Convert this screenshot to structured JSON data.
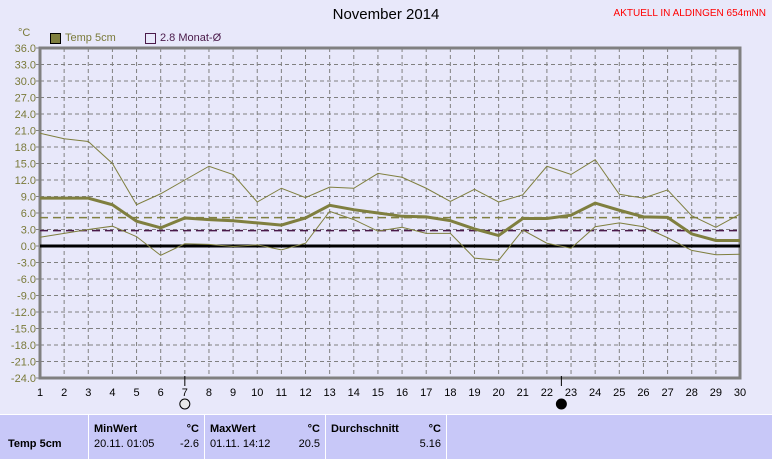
{
  "chart_data": {
    "type": "line",
    "title": "November 2014",
    "ylabel": "°C",
    "ylim": [
      -24,
      36
    ],
    "yticks": [
      "36.0",
      "33.0",
      "30.0",
      "27.0",
      "24.0",
      "21.0",
      "18.0",
      "15.0",
      "12.0",
      "9.0",
      "6.0",
      "3.0",
      "0.0",
      "-3.0",
      "-6.0",
      "-9.0",
      "-12.0",
      "-15.0",
      "-18.0",
      "-21.0",
      "-24.0"
    ],
    "x": [
      1,
      2,
      3,
      4,
      5,
      6,
      7,
      8,
      9,
      10,
      11,
      12,
      13,
      14,
      15,
      16,
      17,
      18,
      19,
      20,
      21,
      22,
      23,
      24,
      25,
      26,
      27,
      28,
      29,
      30
    ],
    "grid": true,
    "legend_position": "top-left",
    "series": [
      {
        "name": "Temp 5cm",
        "role": "mean",
        "color": "#7f7f3f",
        "values": [
          8.7,
          8.7,
          8.7,
          7.5,
          4.5,
          3.3,
          5.1,
          4.8,
          4.6,
          4.2,
          3.8,
          5.1,
          7.4,
          6.6,
          6.0,
          5.4,
          5.3,
          4.6,
          3.1,
          1.9,
          5.0,
          5.0,
          5.6,
          7.8,
          6.5,
          5.3,
          5.2,
          2.2,
          1.0,
          1.0
        ]
      },
      {
        "role": "max",
        "color": "#7f7f3f",
        "values": [
          20.5,
          19.5,
          19.0,
          15.0,
          7.5,
          9.5,
          12.0,
          14.5,
          13.0,
          8.0,
          10.5,
          8.8,
          10.7,
          10.5,
          13.2,
          12.5,
          10.5,
          8.1,
          10.3,
          8.0,
          9.3,
          14.5,
          13.0,
          15.7,
          9.4,
          8.7,
          10.2,
          5.5,
          3.4,
          5.8
        ]
      },
      {
        "role": "min",
        "color": "#7f7f3f",
        "values": [
          1.6,
          2.3,
          3.0,
          3.6,
          1.7,
          -1.7,
          0.4,
          0.3,
          -0.1,
          0.2,
          -0.7,
          0.5,
          6.3,
          4.8,
          2.7,
          3.4,
          2.3,
          2.3,
          -2.2,
          -2.6,
          2.9,
          0.5,
          -0.4,
          3.5,
          4.2,
          3.5,
          1.5,
          -0.8,
          -1.6,
          -1.5
        ]
      }
    ],
    "reference_lines": [
      {
        "name": "2.8 Monat-Ø",
        "value": 2.8,
        "color": "#4a1a4a"
      },
      {
        "role": "average",
        "value": 5.16,
        "color": "#7f7f3f"
      }
    ],
    "moon_phases": [
      {
        "day": 7,
        "phase": "full-moon"
      },
      {
        "day": 22.6,
        "phase": "new-moon"
      }
    ]
  },
  "header": {
    "station": "AKTUELL IN ALDINGEN 654mNN"
  },
  "legend": {
    "series": "Temp 5cm",
    "monthly": "2.8 Monat-Ø"
  },
  "stats": {
    "row_label": "Temp 5cm",
    "min": {
      "label": "MinWert",
      "unit": "°C",
      "time": "20.11.  01:05",
      "value": "-2.6"
    },
    "max": {
      "label": "MaxWert",
      "unit": "°C",
      "time": "01.11.  14:12",
      "value": "20.5"
    },
    "avg": {
      "label": "Durchschnitt",
      "unit": "°C",
      "value": "5.16"
    }
  }
}
